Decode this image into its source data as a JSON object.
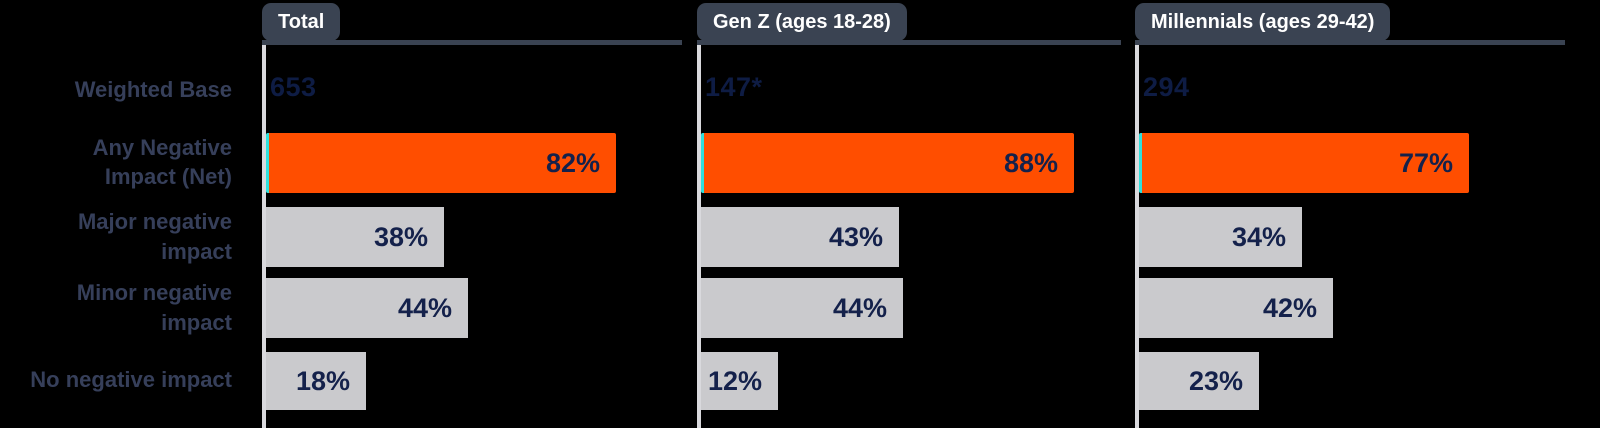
{
  "chart_data": {
    "type": "bar",
    "orientation": "horizontal",
    "title": "",
    "categories": [
      "Any Negative Impact (Net)",
      "Major negative impact",
      "Minor negative impact",
      "No negative impact"
    ],
    "series": [
      {
        "name": "Total",
        "weighted_base": "653",
        "values": [
          82,
          38,
          44,
          18
        ]
      },
      {
        "name": "Gen Z (ages 18-28)",
        "weighted_base": "147*",
        "values": [
          88,
          43,
          44,
          12
        ]
      },
      {
        "name": "Millennials (ages 29-42)",
        "weighted_base": "294",
        "values": [
          77,
          34,
          42,
          23
        ]
      }
    ],
    "value_format": "percent",
    "xlim": [
      0,
      100
    ],
    "grid": false,
    "legend": false,
    "highlight_row": "Any Negative Impact (Net)",
    "highlight_color": "#FF4E00",
    "highlight_accent_color": "#2FE0DC",
    "bar_color": "#CACACD",
    "tab_color": "#3A4352",
    "value_text_color": "#14214B"
  },
  "rows": [
    {
      "label": "Weighted Base"
    },
    {
      "label": "Any Negative\nImpact (Net)"
    },
    {
      "label": "Major negative\nimpact"
    },
    {
      "label": "Minor negative\nimpact"
    },
    {
      "label": "No negative impact"
    }
  ],
  "panels": [
    {
      "tab": "Total",
      "weighted_base": "653",
      "bars": [
        {
          "pct": 82,
          "display": "82%"
        },
        {
          "pct": 38,
          "display": "38%"
        },
        {
          "pct": 44,
          "display": "44%"
        },
        {
          "pct": 18,
          "display": "18%"
        }
      ]
    },
    {
      "tab": "Gen Z (ages 18-28)",
      "weighted_base": "147*",
      "bars": [
        {
          "pct": 88,
          "display": "88%"
        },
        {
          "pct": 43,
          "display": "43%"
        },
        {
          "pct": 44,
          "display": "44%"
        },
        {
          "pct": 12,
          "display": "12%"
        }
      ]
    },
    {
      "tab": "Millennials (ages 29-42)",
      "weighted_base": "294",
      "bars": [
        {
          "pct": 77,
          "display": "77%"
        },
        {
          "pct": 34,
          "display": "34%"
        },
        {
          "pct": 42,
          "display": "42%"
        },
        {
          "pct": 23,
          "display": "23%"
        }
      ]
    }
  ]
}
